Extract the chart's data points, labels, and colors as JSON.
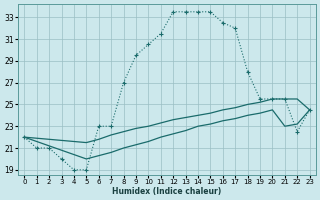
{
  "xlabel": "Humidex (Indice chaleur)",
  "bg_color": "#cce8ec",
  "grid_color": "#9bbfc4",
  "line_color": "#1a6b6b",
  "xlim": [
    -0.5,
    23.5
  ],
  "ylim": [
    18.5,
    34.2
  ],
  "xticks": [
    0,
    1,
    2,
    3,
    4,
    5,
    6,
    7,
    8,
    9,
    10,
    11,
    12,
    13,
    14,
    15,
    16,
    17,
    18,
    19,
    20,
    21,
    22,
    23
  ],
  "yticks": [
    19,
    21,
    23,
    25,
    27,
    29,
    31,
    33
  ],
  "main_x": [
    0,
    1,
    2,
    3,
    4,
    5,
    6,
    7,
    8,
    9,
    10,
    11,
    12,
    13,
    14,
    15,
    16,
    17,
    18,
    19,
    20,
    21,
    22,
    23
  ],
  "main_y": [
    22,
    21,
    21,
    20,
    19,
    19,
    23,
    23,
    27,
    29.5,
    30.5,
    31.5,
    33.5,
    33.5,
    33.5,
    33.5,
    32.5,
    32,
    28,
    25.5,
    25.5,
    25.5,
    22.5,
    24.5
  ],
  "upper_x": [
    0,
    5,
    6,
    7,
    8,
    9,
    10,
    11,
    12,
    13,
    14,
    15,
    16,
    17,
    18,
    19,
    20,
    21,
    22,
    23
  ],
  "upper_y": [
    22,
    21.5,
    21.8,
    22.2,
    22.5,
    22.8,
    23,
    23.3,
    23.6,
    23.8,
    24,
    24.2,
    24.5,
    24.7,
    25,
    25.2,
    25.5,
    25.5,
    25.5,
    24.5
  ],
  "lower_x": [
    0,
    5,
    6,
    7,
    8,
    9,
    10,
    11,
    12,
    13,
    14,
    15,
    16,
    17,
    18,
    19,
    20,
    21,
    22,
    23
  ],
  "lower_y": [
    22,
    20,
    20.3,
    20.6,
    21,
    21.3,
    21.6,
    22,
    22.3,
    22.6,
    23,
    23.2,
    23.5,
    23.7,
    24,
    24.2,
    24.5,
    23,
    23.2,
    24.5
  ]
}
